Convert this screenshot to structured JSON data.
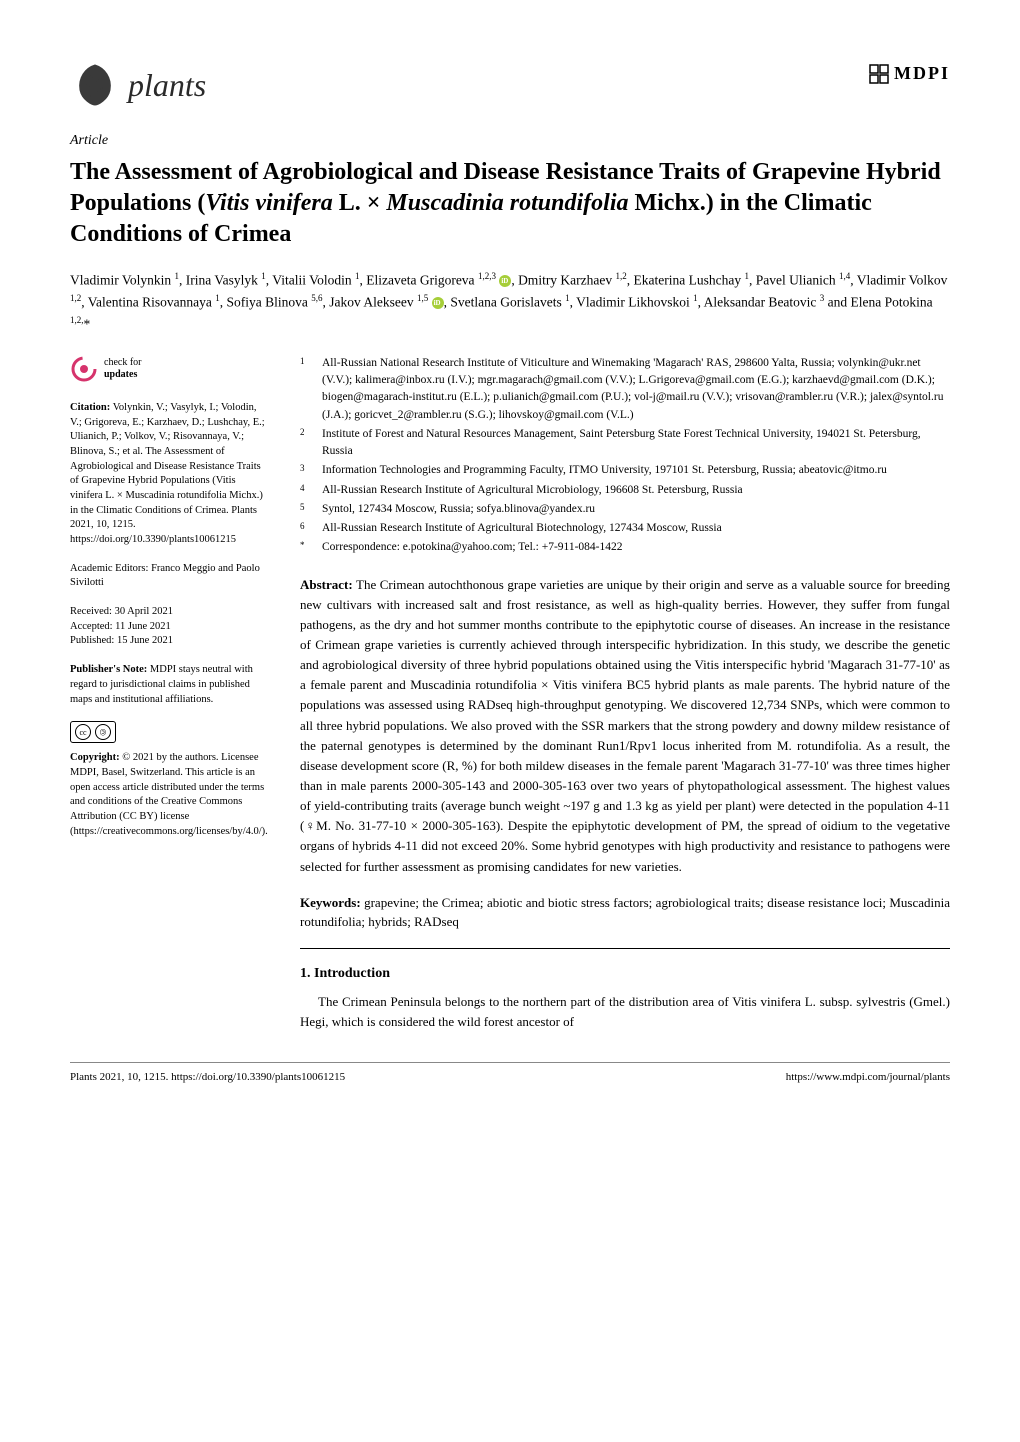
{
  "journal": {
    "name": "plants",
    "publisher": "MDPI"
  },
  "article_type": "Article",
  "title_parts": {
    "pre": "The Assessment of Agrobiological and Disease Resistance Traits of Grapevine Hybrid Populations (",
    "ital1": "Vitis vinifera",
    "mid1": " L. × ",
    "ital2": "Muscadinia rotundifolia",
    "post": " Michx.) in the Climatic Conditions of Crimea"
  },
  "authors_html": "Vladimir Volynkin <sup>1</sup>, Irina Vasylyk <sup>1</sup>, Vitalii Volodin <sup>1</sup>, Elizaveta Grigoreva <sup>1,2,3</sup> <span class=\"orcid\" data-name=\"orcid-icon\" data-interactable=\"false\"></span>, Dmitry Karzhaev <sup>1,2</sup>, Ekaterina Lushchay <sup>1</sup>, Pavel Ulianich <sup>1,4</sup>, Vladimir Volkov <sup>1,2</sup>, Valentina Risovannaya <sup>1</sup>, Sofiya Blinova <sup>5,6</sup>, Jakov Alekseev <sup>1,5</sup> <span class=\"orcid\" data-name=\"orcid-icon\" data-interactable=\"false\"></span>, Svetlana Gorislavets <sup>1</sup>, Vladimir Likhovskoi <sup>1</sup>, Aleksandar Beatovic <sup>3</sup> and Elena Potokina <sup>1,2,</sup>*",
  "affiliations": [
    {
      "n": "1",
      "text": "All-Russian National Research Institute of Viticulture and Winemaking 'Magarach' RAS, 298600 Yalta, Russia; volynkin@ukr.net (V.V.); kalimera@inbox.ru (I.V.); mgr.magarach@gmail.com (V.V.); L.Grigoreva@gmail.com (E.G.); karzhaevd@gmail.com (D.K.); biogen@magarach-institut.ru (E.L.); p.ulianich@gmail.com (P.U.); vol-j@mail.ru (V.V.); vrisovan@rambler.ru (V.R.); jalex@syntol.ru (J.A.); goricvet_2@rambler.ru (S.G.); lihovskoy@gmail.com (V.L.)"
    },
    {
      "n": "2",
      "text": "Institute of Forest and Natural Resources Management, Saint Petersburg State Forest Technical University, 194021 St. Petersburg, Russia"
    },
    {
      "n": "3",
      "text": "Information Technologies and Programming Faculty, ITMO University, 197101 St. Petersburg, Russia; abeatovic@itmo.ru"
    },
    {
      "n": "4",
      "text": "All-Russian Research Institute of Agricultural Microbiology, 196608 St. Petersburg, Russia"
    },
    {
      "n": "5",
      "text": "Syntol, 127434 Moscow, Russia; sofya.blinova@yandex.ru"
    },
    {
      "n": "6",
      "text": "All-Russian Research Institute of Agricultural Biotechnology, 127434 Moscow, Russia"
    },
    {
      "n": "*",
      "text": "Correspondence: e.potokina@yahoo.com; Tel.: +7-911-084-1422"
    }
  ],
  "sidebar": {
    "check_updates": "check for updates",
    "citation_label": "Citation:",
    "citation_text": "Volynkin, V.; Vasylyk, I.; Volodin, V.; Grigoreva, E.; Karzhaev, D.; Lushchay, E.; Ulianich, P.; Volkov, V.; Risovannaya, V.; Blinova, S.; et al. The Assessment of Agrobiological and Disease Resistance Traits of Grapevine Hybrid Populations (Vitis vinifera L. × Muscadinia rotundifolia Michx.) in the Climatic Conditions of Crimea. Plants 2021, 10, 1215. https://doi.org/10.3390/plants10061215",
    "editors_label": "Academic Editors:",
    "editors": "Franco Meggio and Paolo Sivilotti",
    "received": "Received: 30 April 2021",
    "accepted": "Accepted: 11 June 2021",
    "published": "Published: 15 June 2021",
    "pubnote_label": "Publisher's Note:",
    "pubnote": "MDPI stays neutral with regard to jurisdictional claims in published maps and institutional affiliations.",
    "copyright_label": "Copyright:",
    "copyright": "© 2021 by the authors. Licensee MDPI, Basel, Switzerland. This article is an open access article distributed under the terms and conditions of the Creative Commons Attribution (CC BY) license (https://creativecommons.org/licenses/by/4.0/)."
  },
  "abstract": {
    "label": "Abstract:",
    "text": "The Crimean autochthonous grape varieties are unique by their origin and serve as a valuable source for breeding new cultivars with increased salt and frost resistance, as well as high-quality berries. However, they suffer from fungal pathogens, as the dry and hot summer months contribute to the epiphytotic course of diseases. An increase in the resistance of Crimean grape varieties is currently achieved through interspecific hybridization. In this study, we describe the genetic and agrobiological diversity of three hybrid populations obtained using the Vitis interspecific hybrid 'Magarach 31-77-10' as a female parent and Muscadinia rotundifolia × Vitis vinifera BC5 hybrid plants as male parents. The hybrid nature of the populations was assessed using RADseq high-throughput genotyping. We discovered 12,734 SNPs, which were common to all three hybrid populations. We also proved with the SSR markers that the strong powdery and downy mildew resistance of the paternal genotypes is determined by the dominant Run1/Rpv1 locus inherited from M. rotundifolia. As a result, the disease development score (R, %) for both mildew diseases in the female parent 'Magarach 31-77-10' was three times higher than in male parents 2000-305-143 and 2000-305-163 over two years of phytopathological assessment. The highest values of yield-contributing traits (average bunch weight ~197 g and 1.3 kg as yield per plant) were detected in the population 4-11 (♀M. No. 31-77-10 × 2000-305-163). Despite the epiphytotic development of PM, the spread of oidium to the vegetative organs of hybrids 4-11 did not exceed 20%. Some hybrid genotypes with high productivity and resistance to pathogens were selected for further assessment as promising candidates for new varieties."
  },
  "keywords": {
    "label": "Keywords:",
    "text": "grapevine; the Crimea; abiotic and biotic stress factors; agrobiological traits; disease resistance loci; Muscadinia rotundifolia; hybrids; RADseq"
  },
  "section1": {
    "heading": "1. Introduction",
    "body": "The Crimean Peninsula belongs to the northern part of the distribution area of Vitis vinifera L. subsp. sylvestris (Gmel.) Hegi, which is considered the wild forest ancestor of"
  },
  "footer": {
    "left": "Plants 2021, 10, 1215. https://doi.org/10.3390/plants10061215",
    "right": "https://www.mdpi.com/journal/plants"
  },
  "colors": {
    "leaf_fill": "#3a3a3a",
    "orcid": "#a6ce39",
    "check_ring": "#d6336c",
    "text": "#000000",
    "bg": "#ffffff"
  },
  "typography": {
    "title_fontsize": 24,
    "body_fontsize": 13,
    "sidebar_fontsize": 10.5,
    "affil_fontsize": 11.5,
    "journal_name_fontsize": 32
  }
}
